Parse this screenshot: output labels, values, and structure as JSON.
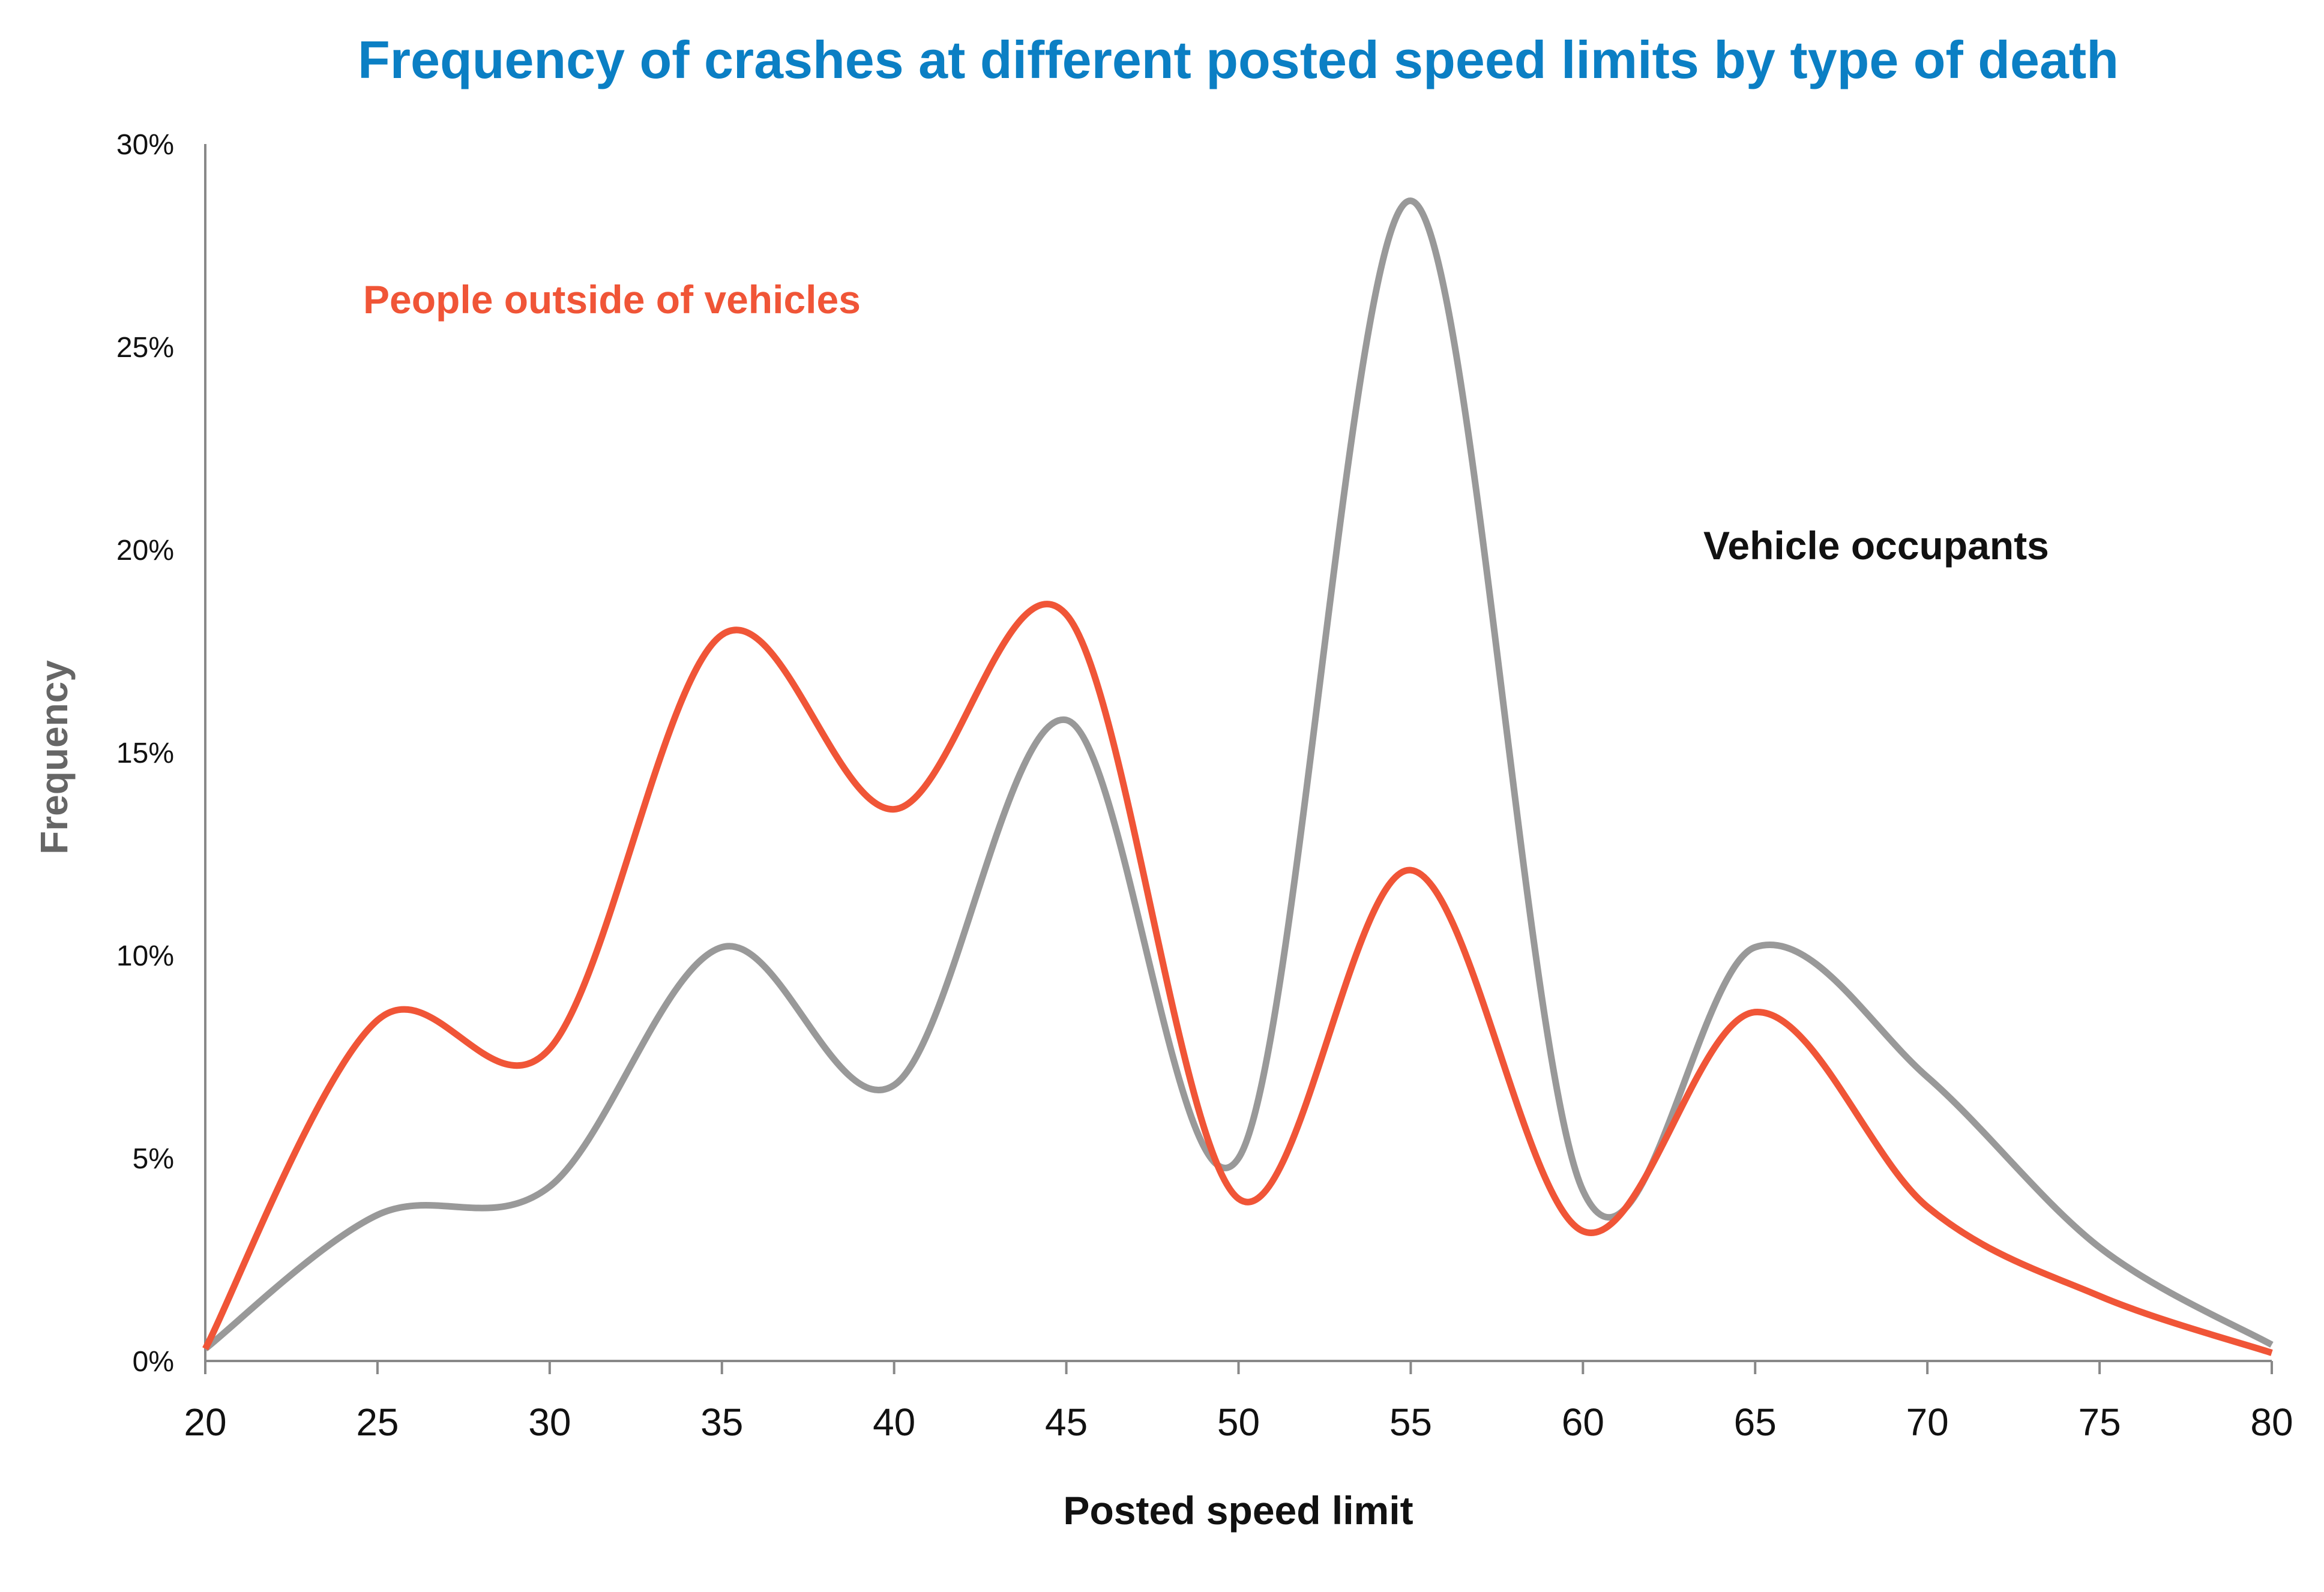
{
  "chart_data": {
    "type": "line",
    "title": "Frequency of crashes at different posted speed limits by type of death",
    "xlabel": "Posted speed limit",
    "ylabel": "Frequency",
    "x": [
      20,
      25,
      30,
      35,
      40,
      45,
      50,
      55,
      60,
      65,
      70,
      75,
      80
    ],
    "xlim": [
      20,
      80
    ],
    "ylim": [
      0,
      30
    ],
    "xticks": [
      "20",
      "25",
      "30",
      "35",
      "40",
      "45",
      "50",
      "55",
      "60",
      "65",
      "70",
      "75",
      "80"
    ],
    "yticks": [
      "0%",
      "5%",
      "10%",
      "15%",
      "20%",
      "25%",
      "30%"
    ],
    "grid": false,
    "legend": "inline annotations",
    "series": [
      {
        "name": "People outside of vehicles",
        "color": "#f05537",
        "values": [
          0.3,
          8.4,
          7.7,
          17.9,
          13.6,
          18.4,
          4.0,
          12.1,
          3.2,
          8.6,
          3.8,
          1.6,
          0.2
        ]
      },
      {
        "name": "Vehicle occupants",
        "color": "#999999",
        "values": [
          0.3,
          3.6,
          4.3,
          10.2,
          6.8,
          15.8,
          5.0,
          28.6,
          4.2,
          10.2,
          7.0,
          2.8,
          0.4
        ]
      }
    ]
  }
}
